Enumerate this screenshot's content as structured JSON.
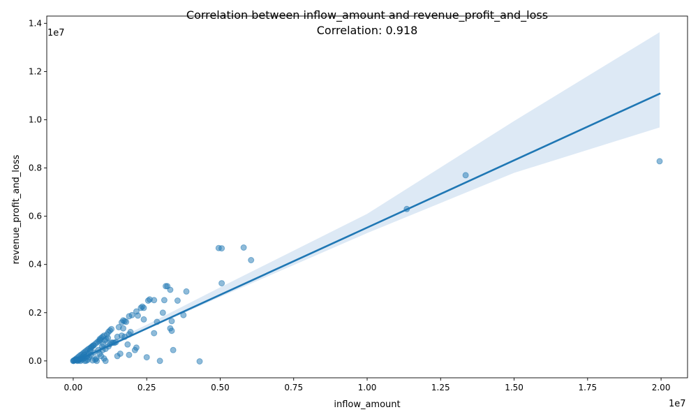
{
  "chart_data": {
    "type": "scatter",
    "title": "Correlation between inflow_amount and revenue_profit_and_loss",
    "subtitle": "Correlation: 0.918",
    "xlabel": "inflow_amount",
    "ylabel": "revenue_profit_and_loss",
    "x_offset_label": "1e7",
    "y_offset_label": "1e7",
    "xlim": [
      -900000,
      20900000
    ],
    "ylim": [
      -700000,
      14300000
    ],
    "x_ticks": [
      0,
      2500000,
      5000000,
      7500000,
      10000000,
      12500000,
      15000000,
      17500000,
      20000000
    ],
    "x_tick_labels": [
      "0.00",
      "0.25",
      "0.50",
      "0.75",
      "1.00",
      "1.25",
      "1.50",
      "1.75",
      "2.00"
    ],
    "y_ticks": [
      0,
      2000000,
      4000000,
      6000000,
      8000000,
      10000000,
      12000000,
      14000000
    ],
    "y_tick_labels": [
      "0.0",
      "0.2",
      "0.4",
      "0.6",
      "0.8",
      "1.0",
      "1.2",
      "1.4"
    ],
    "grid": false,
    "point_color": "#1f77b4",
    "regression_line": {
      "x": [
        0,
        19950000
      ],
      "y": [
        -50000,
        11080000
      ],
      "color": "#1f77b4"
    },
    "confidence_band": {
      "x": [
        0,
        2500000,
        5000000,
        10000000,
        15000000,
        19950000
      ],
      "lower": [
        -150000,
        1300000,
        2650000,
        5300000,
        7800000,
        9680000
      ],
      "upper": [
        50000,
        1500000,
        3050000,
        6100000,
        9950000,
        13630000
      ],
      "color": "#c6dbef"
    },
    "points": [
      [
        19950000,
        8280000
      ],
      [
        13350000,
        7700000
      ],
      [
        11350000,
        6300000
      ],
      [
        5800000,
        4700000
      ],
      [
        4950000,
        4680000
      ],
      [
        5050000,
        4670000
      ],
      [
        6050000,
        4180000
      ],
      [
        5050000,
        3220000
      ],
      [
        3150000,
        3100000
      ],
      [
        3200000,
        3100000
      ],
      [
        3850000,
        2880000
      ],
      [
        3300000,
        2950000
      ],
      [
        2600000,
        2550000
      ],
      [
        2550000,
        2500000
      ],
      [
        2750000,
        2520000
      ],
      [
        3100000,
        2520000
      ],
      [
        3550000,
        2500000
      ],
      [
        2350000,
        2250000
      ],
      [
        2400000,
        2200000
      ],
      [
        2300000,
        2200000
      ],
      [
        2150000,
        2050000
      ],
      [
        2000000,
        1900000
      ],
      [
        1900000,
        1850000
      ],
      [
        2200000,
        1880000
      ],
      [
        2400000,
        1720000
      ],
      [
        3050000,
        2000000
      ],
      [
        3750000,
        1900000
      ],
      [
        3350000,
        1650000
      ],
      [
        2850000,
        1620000
      ],
      [
        1700000,
        1680000
      ],
      [
        1650000,
        1600000
      ],
      [
        1800000,
        1620000
      ],
      [
        1750000,
        1650000
      ],
      [
        1550000,
        1400000
      ],
      [
        1700000,
        1350000
      ],
      [
        1300000,
        1320000
      ],
      [
        1250000,
        1260000
      ],
      [
        1200000,
        1200000
      ],
      [
        1950000,
        1200000
      ],
      [
        1900000,
        1100000
      ],
      [
        3300000,
        1350000
      ],
      [
        3350000,
        1250000
      ],
      [
        2750000,
        1150000
      ],
      [
        1650000,
        1050000
      ],
      [
        1750000,
        1000000
      ],
      [
        1500000,
        1000000
      ],
      [
        1150000,
        1100000
      ],
      [
        1050000,
        1050000
      ],
      [
        1000000,
        1000000
      ],
      [
        950000,
        950000
      ],
      [
        900000,
        900000
      ],
      [
        1400000,
        750000
      ],
      [
        1350000,
        760000
      ],
      [
        1250000,
        700000
      ],
      [
        1850000,
        680000
      ],
      [
        1200000,
        600000
      ],
      [
        1100000,
        500000
      ],
      [
        2150000,
        550000
      ],
      [
        2100000,
        450000
      ],
      [
        3400000,
        450000
      ],
      [
        1600000,
        300000
      ],
      [
        1500000,
        200000
      ],
      [
        1900000,
        250000
      ],
      [
        2500000,
        150000
      ],
      [
        1050000,
        100000
      ],
      [
        1100000,
        0
      ],
      [
        2950000,
        0
      ],
      [
        4300000,
        -20000
      ],
      [
        750000,
        50000
      ],
      [
        800000,
        0
      ],
      [
        700000,
        650000
      ],
      [
        650000,
        600000
      ],
      [
        600000,
        550000
      ],
      [
        550000,
        520000
      ],
      [
        500000,
        480000
      ],
      [
        450000,
        430000
      ],
      [
        400000,
        380000
      ],
      [
        350000,
        330000
      ],
      [
        300000,
        280000
      ],
      [
        250000,
        240000
      ],
      [
        200000,
        190000
      ],
      [
        150000,
        140000
      ],
      [
        100000,
        90000
      ],
      [
        80000,
        60000
      ],
      [
        50000,
        40000
      ],
      [
        30000,
        20000
      ],
      [
        10000,
        5000
      ],
      [
        0,
        0
      ],
      [
        900000,
        300000
      ],
      [
        950000,
        200000
      ],
      [
        850000,
        450000
      ],
      [
        700000,
        350000
      ],
      [
        600000,
        250000
      ],
      [
        550000,
        150000
      ],
      [
        500000,
        50000
      ],
      [
        450000,
        10000
      ],
      [
        400000,
        0
      ],
      [
        350000,
        100000
      ],
      [
        300000,
        50000
      ],
      [
        250000,
        0
      ],
      [
        200000,
        30000
      ],
      [
        150000,
        0
      ],
      [
        120000,
        20000
      ],
      [
        820000,
        780000
      ],
      [
        760000,
        720000
      ],
      [
        680000,
        640000
      ],
      [
        620000,
        580000
      ],
      [
        580000,
        420000
      ],
      [
        520000,
        300000
      ],
      [
        480000,
        200000
      ],
      [
        420000,
        150000
      ],
      [
        380000,
        260000
      ],
      [
        330000,
        180000
      ],
      [
        280000,
        120000
      ],
      [
        230000,
        80000
      ],
      [
        180000,
        60000
      ],
      [
        130000,
        40000
      ],
      [
        870000,
        820000
      ],
      [
        920000,
        860000
      ],
      [
        980000,
        600000
      ],
      [
        1020000,
        700000
      ],
      [
        1080000,
        850000
      ],
      [
        1120000,
        900000
      ],
      [
        1180000,
        950000
      ],
      [
        1300000,
        760000
      ],
      [
        1450000,
        780000
      ],
      [
        1000000,
        450000
      ],
      [
        780000,
        100000
      ],
      [
        660000,
        20000
      ]
    ]
  }
}
